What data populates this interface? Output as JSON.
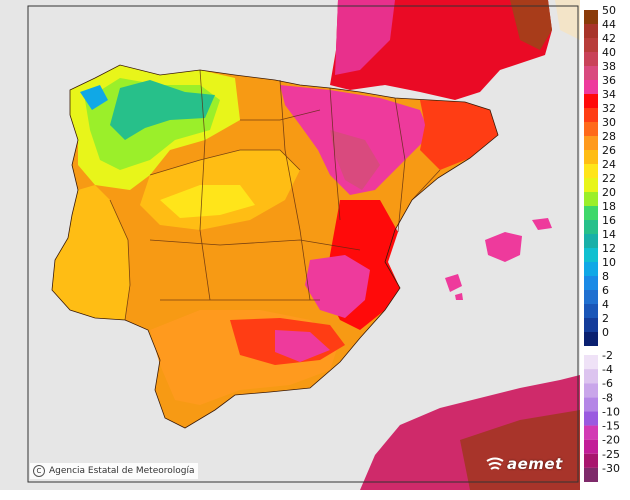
{
  "map": {
    "credit": "Agencia Estatal de Meteorología",
    "logo": "aemet",
    "colors": {
      "sea": "#e6e6e6",
      "france": "#ea0a25",
      "morocco": "#cf2a6a",
      "land_base": "#f79a14"
    }
  },
  "legend": {
    "positive": [
      {
        "label": "50",
        "color": "#8a3b0a"
      },
      {
        "label": "44",
        "color": "#a8342a"
      },
      {
        "label": "42",
        "color": "#b83d3a"
      },
      {
        "label": "40",
        "color": "#c94258"
      },
      {
        "label": "38",
        "color": "#d94a7e"
      },
      {
        "label": "36",
        "color": "#ee3a9c"
      },
      {
        "label": "34",
        "color": "#ff0a0a"
      },
      {
        "label": "32",
        "color": "#ff3d14"
      },
      {
        "label": "30",
        "color": "#ff6a1a"
      },
      {
        "label": "28",
        "color": "#ff9a1e"
      },
      {
        "label": "26",
        "color": "#ffbd14"
      },
      {
        "label": "24",
        "color": "#ffe51a"
      },
      {
        "label": "22",
        "color": "#e8f51a"
      },
      {
        "label": "20",
        "color": "#9bef2a"
      },
      {
        "label": "18",
        "color": "#3fd86a"
      },
      {
        "label": "16",
        "color": "#27c08a"
      },
      {
        "label": "14",
        "color": "#18b0a8"
      },
      {
        "label": "12",
        "color": "#10c0d0"
      },
      {
        "label": "10",
        "color": "#10a8e6"
      },
      {
        "label": "8",
        "color": "#1a8ae6"
      },
      {
        "label": "6",
        "color": "#2070d0"
      },
      {
        "label": "4",
        "color": "#1a56b8"
      },
      {
        "label": "2",
        "color": "#143c9a"
      },
      {
        "label": "0",
        "color": "#0a2070"
      }
    ],
    "negative": [
      {
        "label": "-2",
        "color": "#efe2f7"
      },
      {
        "label": "-4",
        "color": "#dcc4ef"
      },
      {
        "label": "-6",
        "color": "#c9a6ea"
      },
      {
        "label": "-8",
        "color": "#b486e6"
      },
      {
        "label": "-10",
        "color": "#9a5ae0"
      },
      {
        "label": "-15",
        "color": "#d23ab4"
      },
      {
        "label": "-20",
        "color": "#c21e98"
      },
      {
        "label": "-25",
        "color": "#a8166e"
      },
      {
        "label": "-30",
        "color": "#7e2a6a"
      }
    ]
  }
}
